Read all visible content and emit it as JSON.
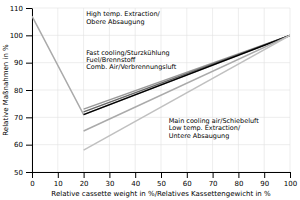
{
  "chart_data": {
    "type": "line",
    "xlabel": "Relative cassette weight in %/Relatives Kassettengewicht in %",
    "ylabel": "Relative Maßnahmen in %",
    "xlim": [
      0,
      100
    ],
    "ylim": [
      50,
      110
    ],
    "xticks": [
      0,
      10,
      20,
      30,
      40,
      50,
      60,
      70,
      80,
      90,
      100
    ],
    "yticks": [
      50,
      60,
      70,
      80,
      90,
      100,
      110
    ],
    "grid": true,
    "series": [
      {
        "color": "#aaaaaa",
        "x": [
          0,
          20,
          100
        ],
        "values": [
          107,
          71,
          100
        ]
      },
      {
        "color": "#999999",
        "x": [
          20,
          100
        ],
        "values": [
          73,
          100
        ]
      },
      {
        "color": "#666666",
        "x": [
          20,
          100
        ],
        "values": [
          72,
          100
        ]
      },
      {
        "color": "#000000",
        "x": [
          20,
          100
        ],
        "values": [
          71,
          100
        ]
      },
      {
        "color": "#aaaaaa",
        "x": [
          20,
          100
        ],
        "values": [
          65,
          100
        ]
      },
      {
        "color": "#c0c0c0",
        "x": [
          20,
          100
        ],
        "values": [
          58,
          100
        ]
      }
    ],
    "annotations": [
      {
        "text": "High temp. Extraction/\nObere Absaugung",
        "x": 21,
        "y": 109
      },
      {
        "text": "Fast cooling/Sturzkühlung\nFuel/Brennstoff\nComb. Air/Verbrennungsluft",
        "x": 21,
        "y": 95
      },
      {
        "text": "Main cooling air/Schiebeluft\nLow temp. Extraction/\nUntere Absaugung",
        "x": 53,
        "y": 70
      }
    ]
  }
}
